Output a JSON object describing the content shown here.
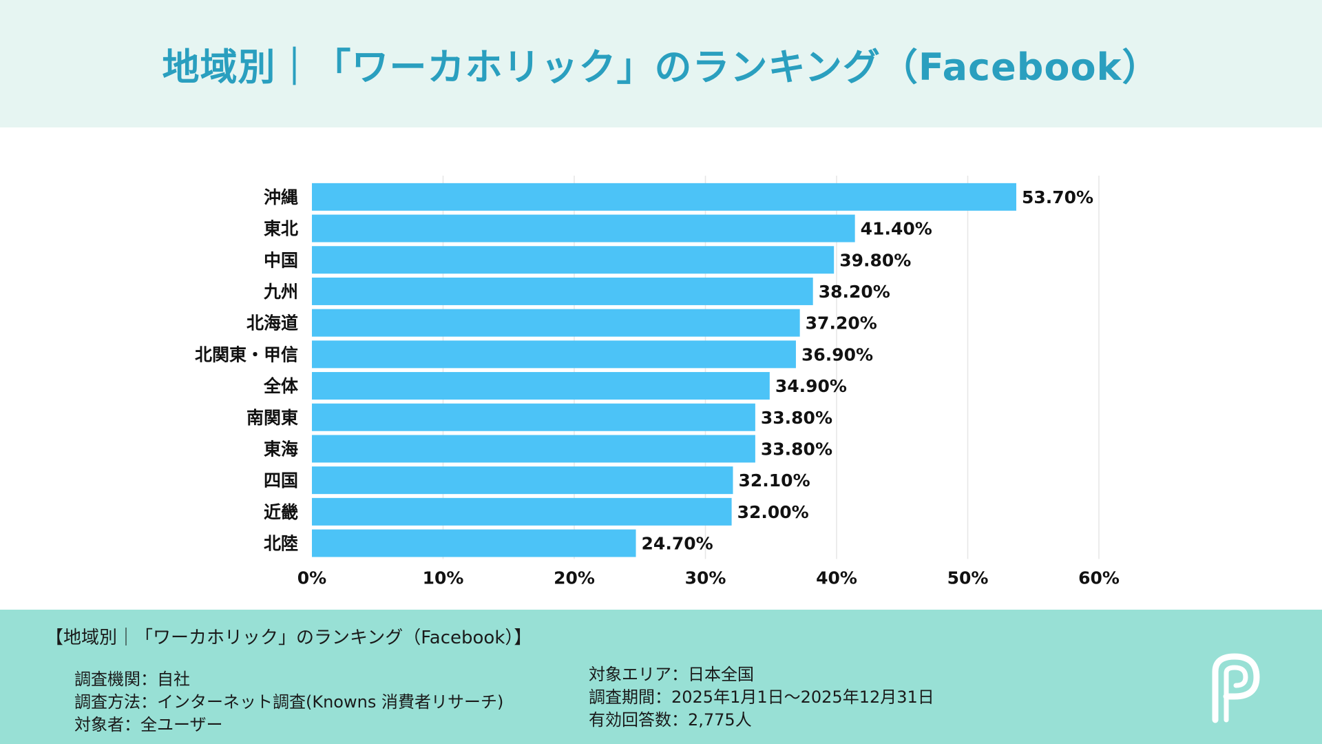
{
  "title": "地域別｜「ワーカホリック」のランキング（Facebook）",
  "chart_data": {
    "type": "bar",
    "orientation": "horizontal",
    "categories": [
      "沖縄",
      "東北",
      "中国",
      "九州",
      "北海道",
      "北関東・甲信",
      "全体",
      "南関東",
      "東海",
      "四国",
      "近畿",
      "北陸"
    ],
    "values": [
      53.7,
      41.4,
      39.8,
      38.2,
      37.2,
      36.9,
      34.9,
      33.8,
      33.8,
      32.1,
      32.0,
      24.7
    ],
    "value_labels": [
      "53.70%",
      "41.40%",
      "39.80%",
      "38.20%",
      "37.20%",
      "36.90%",
      "34.90%",
      "33.80%",
      "33.80%",
      "32.10%",
      "32.00%",
      "24.70%"
    ],
    "xlim": [
      0,
      60
    ],
    "xticks": [
      0,
      10,
      20,
      30,
      40,
      50,
      60
    ],
    "xtick_labels": [
      "0%",
      "10%",
      "20%",
      "30%",
      "40%",
      "50%",
      "60%"
    ],
    "bar_color": "#4cc3f7",
    "grid": true
  },
  "footer": {
    "title": "【地域別｜「ワーカホリック」のランキング（Facebook）】",
    "left": [
      "調査機関：自社",
      "調査方法：インターネット調査(Knowns 消費者リサーチ)",
      "対象者：全ユーザー"
    ],
    "right": [
      "対象エリア：日本全国",
      "調査期間：2025年1月1日〜2025年12月31日",
      "有効回答数：2,775人"
    ]
  },
  "colors": {
    "header_bg": "#e6f5f2",
    "footer_bg": "#98e0d5",
    "title": "#2a9fbf"
  }
}
